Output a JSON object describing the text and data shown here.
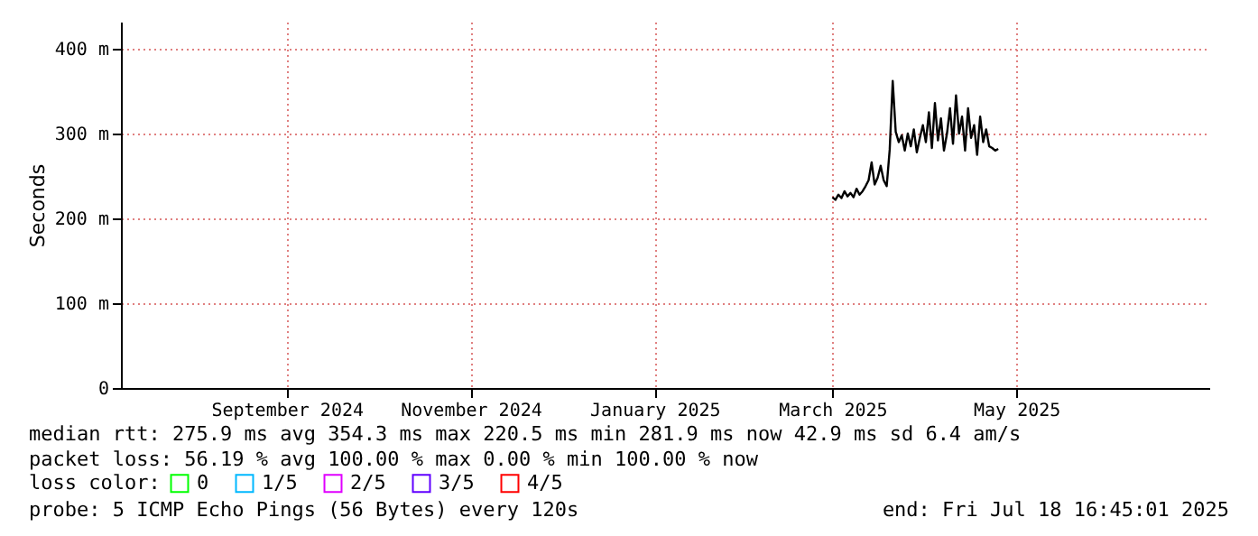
{
  "chart_data": {
    "type": "line",
    "ylabel": "Seconds",
    "xlim": [
      "2024-07-22",
      "2025-07-18"
    ],
    "xticks": [
      {
        "value": "2024-09-15",
        "label": "September 2024"
      },
      {
        "value": "2024-11-15",
        "label": "November 2024"
      },
      {
        "value": "2025-01-15",
        "label": "January 2025"
      },
      {
        "value": "2025-03-15",
        "label": "March 2025"
      },
      {
        "value": "2025-05-15",
        "label": "May 2025"
      }
    ],
    "ylim": [
      0,
      432
    ],
    "yticks": [
      0,
      {
        "value": 100,
        "label": "100 m"
      },
      {
        "value": 200,
        "label": "200 m"
      },
      {
        "value": 300,
        "label": "300 m"
      },
      {
        "value": 400,
        "label": "400 m"
      }
    ],
    "x": [
      "2025-03-15",
      "2025-03-16",
      "2025-03-17",
      "2025-03-18",
      "2025-03-19",
      "2025-03-20",
      "2025-03-21",
      "2025-03-22",
      "2025-03-23",
      "2025-03-24",
      "2025-03-25",
      "2025-03-26",
      "2025-03-27",
      "2025-03-28",
      "2025-03-29",
      "2025-03-30",
      "2025-03-31",
      "2025-04-01",
      "2025-04-02",
      "2025-04-03",
      "2025-04-04",
      "2025-04-05",
      "2025-04-06",
      "2025-04-07",
      "2025-04-08",
      "2025-04-09",
      "2025-04-10",
      "2025-04-11",
      "2025-04-12",
      "2025-04-13",
      "2025-04-14",
      "2025-04-15",
      "2025-04-16",
      "2025-04-17",
      "2025-04-18",
      "2025-04-19",
      "2025-04-20",
      "2025-04-21",
      "2025-04-22",
      "2025-04-23",
      "2025-04-24",
      "2025-04-25",
      "2025-04-26",
      "2025-04-27",
      "2025-04-28",
      "2025-04-29",
      "2025-04-30",
      "2025-05-01",
      "2025-05-02",
      "2025-05-03",
      "2025-05-04",
      "2025-05-05",
      "2025-05-06",
      "2025-05-07",
      "2025-05-08",
      "2025-05-09"
    ],
    "series": [
      {
        "color": "#000000",
        "values": [
          225,
          222,
          228,
          224,
          232,
          226,
          230,
          225,
          235,
          228,
          232,
          238,
          245,
          266,
          240,
          248,
          262,
          245,
          238,
          281,
          362,
          302,
          290,
          298,
          280,
          300,
          285,
          305,
          278,
          295,
          310,
          290,
          325,
          283,
          336,
          292,
          318,
          280,
          300,
          330,
          288,
          345,
          300,
          320,
          280,
          330,
          295,
          310,
          275,
          320,
          290,
          305,
          285,
          283,
          280,
          282
        ]
      },
      {
        "name": "0",
        "color": "#00ff00",
        "values": [
          null,
          null,
          null,
          null,
          null,
          null,
          null,
          null,
          null,
          null,
          null,
          null,
          null,
          null,
          null,
          null,
          null,
          null,
          null,
          null,
          null,
          null,
          null,
          null,
          null,
          null,
          null,
          null,
          null,
          null,
          null,
          null,
          null,
          null,
          null,
          null,
          null,
          null,
          null,
          null,
          null,
          null,
          null,
          null,
          null,
          null,
          null,
          null,
          null,
          null,
          null,
          null,
          null,
          null,
          null,
          null
        ]
      },
      {
        "name": "1/5",
        "color": "#00b8ff",
        "values": [
          null,
          null,
          null,
          null,
          null,
          null,
          null,
          null,
          null,
          null,
          null,
          null,
          null,
          null,
          null,
          null,
          null,
          null,
          null,
          null,
          null,
          null,
          null,
          null,
          null,
          null,
          null,
          null,
          null,
          null,
          null,
          null,
          null,
          null,
          null,
          null,
          null,
          null,
          null,
          null,
          null,
          null,
          null,
          null,
          null,
          null,
          null,
          null,
          null,
          null,
          null,
          null,
          null,
          null,
          null,
          null
        ]
      },
      {
        "name": "2/5",
        "color": "#e000ff",
        "values": [
          null,
          null,
          null,
          null,
          null,
          null,
          null,
          null,
          null,
          null,
          null,
          null,
          null,
          null,
          null,
          null,
          null,
          null,
          null,
          null,
          null,
          null,
          null,
          null,
          null,
          null,
          null,
          null,
          null,
          null,
          null,
          null,
          null,
          null,
          null,
          null,
          null,
          null,
          null,
          null,
          null,
          null,
          null,
          null,
          null,
          null,
          null,
          null,
          null,
          null,
          null,
          null,
          null,
          null,
          null,
          null
        ]
      },
      {
        "name": "3/5",
        "color": "#6000ff",
        "values": [
          null,
          null,
          null,
          null,
          null,
          null,
          null,
          null,
          null,
          null,
          null,
          null,
          null,
          null,
          null,
          null,
          null,
          null,
          null,
          null,
          null,
          null,
          null,
          null,
          null,
          null,
          null,
          null,
          null,
          null,
          null,
          null,
          null,
          null,
          null,
          null,
          null,
          null,
          null,
          null,
          null,
          null,
          null,
          null,
          null,
          null,
          null,
          null,
          null,
          null,
          null,
          null,
          null,
          null,
          null,
          null
        ]
      },
      {
        "name": "4/5",
        "color": "#ff0000",
        "values": [
          null,
          null,
          null,
          null,
          null,
          null,
          null,
          null,
          null,
          null,
          null,
          null,
          null,
          null,
          null,
          null,
          null,
          null,
          null,
          null,
          null,
          null,
          null,
          null,
          null,
          null,
          null,
          null,
          null,
          null,
          null,
          null,
          null,
          null,
          null,
          null,
          null,
          null,
          null,
          null,
          null,
          null,
          null,
          null,
          null,
          null,
          null,
          null,
          null,
          null,
          null,
          null,
          null,
          null,
          null,
          null
        ]
      }
    ],
    "legend_title": "loss color:",
    "legend": "bottom",
    "grid": true,
    "line_style": "solid",
    "marker": "none",
    "annotations": [
      "median rtt:  275.9 ms avg  354.3 ms max  220.5 ms min  281.9 ms now  42.9 ms sd  6.4   am/s",
      "packet loss: 56.19 % avg  100.00 % max  0.00 % min  100.00 % now",
      "probe:       5 ICMP Echo Pings (56 Bytes) every 120s",
      "end: Fri Jul 18 16:45:01 2025"
    ]
  }
}
